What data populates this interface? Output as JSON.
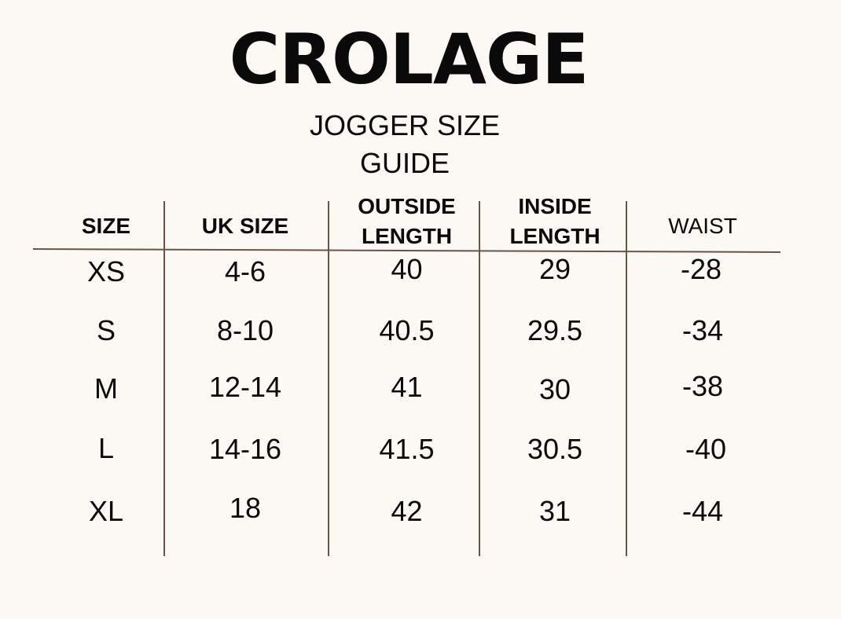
{
  "brand": "CROLAGE",
  "subtitle": {
    "line1": "JOGGER SIZE",
    "line2": "GUIDE"
  },
  "table": {
    "headers": {
      "size": "SIZE",
      "uk_size": "UK SIZE",
      "outside_line1": "OUTSIDE",
      "outside_line2": "LENGTH",
      "inside_line1": "INSIDE",
      "inside_line2": "LENGTH",
      "waist": "WAIST"
    },
    "rows": [
      {
        "size": "XS",
        "uk": "4-6",
        "outside": "40",
        "inside": "29",
        "waist": "-28"
      },
      {
        "size": "S",
        "uk": "8-10",
        "outside": "40.5",
        "inside": "29.5",
        "waist": "-34"
      },
      {
        "size": "M",
        "uk": "12-14",
        "outside": "41",
        "inside": "30",
        "waist": "-38"
      },
      {
        "size": "L",
        "uk": "14-16",
        "outside": "41.5",
        "inside": "30.5",
        "waist": "-40"
      },
      {
        "size": "XL",
        "uk": "18",
        "outside": "42",
        "inside": "31",
        "waist": "-44"
      }
    ]
  },
  "colors": {
    "background": "#fcf8f4",
    "rule": "#6b5447",
    "text": "#0a0a0a"
  }
}
